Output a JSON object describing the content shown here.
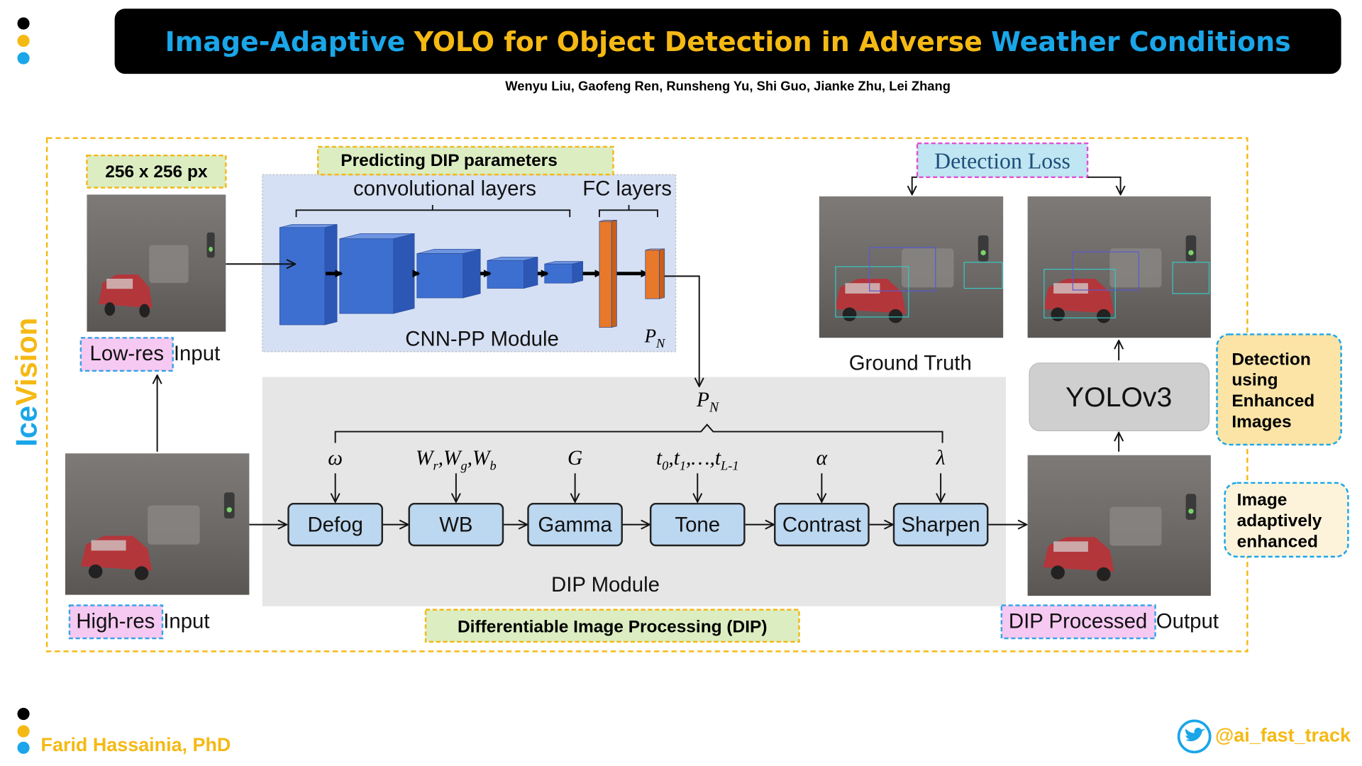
{
  "header": {
    "title": [
      "Image-Adaptive",
      "YOLO for Object Detection in Adverse",
      "Weather Conditions"
    ],
    "authors": "Wenyu Liu, Gaofeng Ren, Runsheng Yu, Shi Guo, Jianke Zhu, Lei Zhang"
  },
  "brand": {
    "prefix": "Ice",
    "suffix": "Vision"
  },
  "input": {
    "size": "256 x 256 px",
    "low_res": "Low-res",
    "high_res": "High-res",
    "input_word": "Input"
  },
  "cnn_pp": {
    "banner": "Predicting DIP parameters",
    "conv": "convolutional layers",
    "fc": "FC layers",
    "name": "CNN-PP Module",
    "output": [
      "P",
      "N"
    ]
  },
  "dip": {
    "banner": "Differentiable Image Processing (DIP)",
    "name": "DIP Module",
    "filters": [
      {
        "name": "Defog",
        "param": [
          "ω"
        ]
      },
      {
        "name": "WB",
        "param": [
          "W",
          "r",
          ",W",
          "g",
          ",W",
          "b"
        ]
      },
      {
        "name": "Gamma",
        "param": [
          "G"
        ]
      },
      {
        "name": "Tone",
        "param": [
          "t",
          "0",
          ",t",
          "1",
          ",…,t",
          "L-1"
        ]
      },
      {
        "name": "Contrast",
        "param": [
          "α"
        ]
      },
      {
        "name": "Sharpen",
        "param": [
          "λ"
        ]
      }
    ]
  },
  "detection": {
    "loss": "Detection Loss",
    "ground_truth": "Ground Truth",
    "model": "YOLOv3",
    "processed": "DIP Processed",
    "output_word": "Output"
  },
  "notes": {
    "detection": [
      "Detection",
      "using",
      "Enhanced",
      "Images"
    ],
    "enhanced": [
      "Image",
      "adaptively",
      "enhanced"
    ]
  },
  "footer": {
    "author": "Farid Hassainia, PhD",
    "handle": "@ai_fast_track"
  }
}
